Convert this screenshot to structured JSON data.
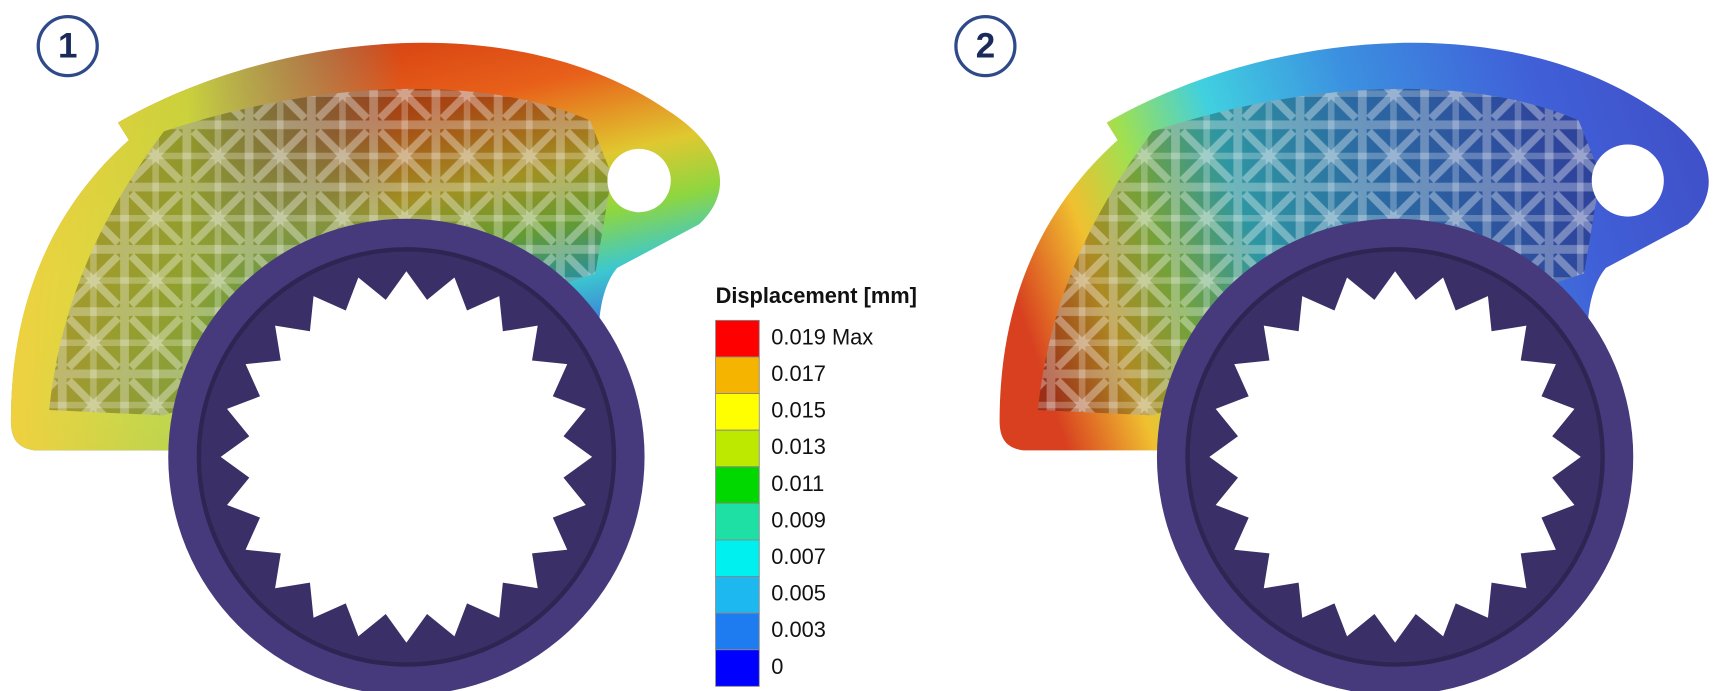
{
  "panels": [
    {
      "label": "1"
    },
    {
      "label": "2"
    }
  ],
  "legend": {
    "title": "Displacement [mm]",
    "items": [
      {
        "label": "0.019 Max",
        "color": "#ff0000"
      },
      {
        "label": "0.017",
        "color": "#f5b400"
      },
      {
        "label": "0.015",
        "color": "#ffff00"
      },
      {
        "label": "0.013",
        "color": "#bde800"
      },
      {
        "label": "0.011",
        "color": "#00d800"
      },
      {
        "label": "0.009",
        "color": "#1fe0a4"
      },
      {
        "label": "0.007",
        "color": "#00f0f0"
      },
      {
        "label": "0.005",
        "color": "#1eb8f0"
      },
      {
        "label": "0.003",
        "color": "#1e7cf0"
      },
      {
        "label": "0",
        "color": "#0000ff"
      }
    ]
  }
}
